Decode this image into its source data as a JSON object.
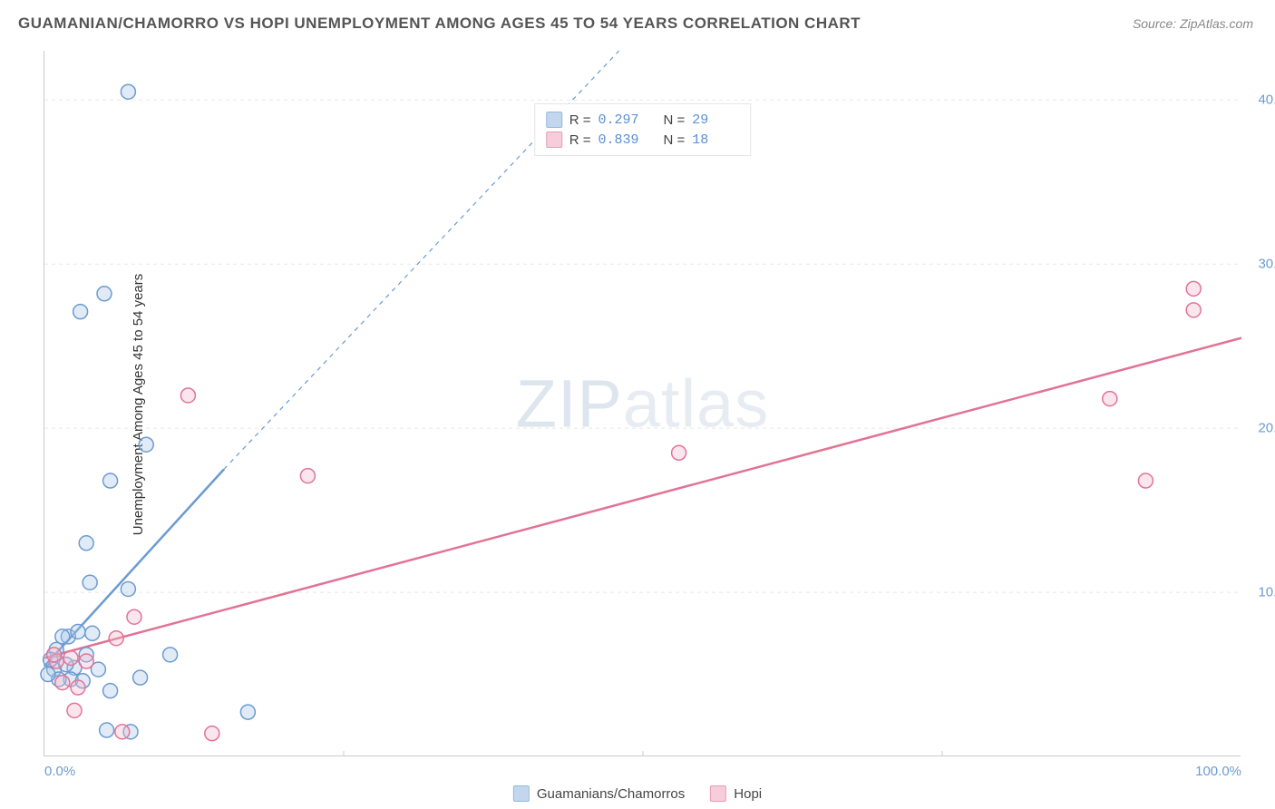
{
  "title": "GUAMANIAN/CHAMORRO VS HOPI UNEMPLOYMENT AMONG AGES 45 TO 54 YEARS CORRELATION CHART",
  "source": "Source: ZipAtlas.com",
  "y_axis_label": "Unemployment Among Ages 45 to 54 years",
  "watermark_bold": "ZIP",
  "watermark_light": "atlas",
  "chart": {
    "type": "scatter",
    "xlim": [
      0,
      100
    ],
    "ylim": [
      0,
      43
    ],
    "x_ticks": [
      {
        "value": 0,
        "label": "0.0%",
        "align": "left"
      },
      {
        "value": 100,
        "label": "100.0%",
        "align": "right"
      }
    ],
    "y_ticks": [
      {
        "value": 10,
        "label": "10.0%"
      },
      {
        "value": 20,
        "label": "20.0%"
      },
      {
        "value": 30,
        "label": "30.0%"
      },
      {
        "value": 40,
        "label": "40.0%"
      }
    ],
    "gridlines_y": [
      10,
      20,
      30,
      40
    ],
    "x_minor_ticks": [
      25,
      50,
      75
    ],
    "background_color": "#ffffff",
    "grid_color": "#e8e8e8",
    "axis_color": "#cccccc",
    "marker_radius": 8,
    "marker_stroke_width": 1.5,
    "marker_fill_opacity": 0.35,
    "series": [
      {
        "name": "Guamanians/Chamorros",
        "color": "#6b9bd1",
        "fill": "#a9c7e8",
        "r": 0.297,
        "n": 29,
        "trend_line": {
          "x1": 0,
          "y1": 5.5,
          "x2": 15,
          "y2": 17.5,
          "width": 2.5,
          "dash": "none"
        },
        "trend_dashed": {
          "x1": 15,
          "y1": 17.5,
          "x2": 48,
          "y2": 43,
          "width": 1.2,
          "dash": "5,5"
        },
        "points": [
          {
            "x": 7,
            "y": 40.5
          },
          {
            "x": 5,
            "y": 28.2
          },
          {
            "x": 3,
            "y": 27.1
          },
          {
            "x": 8.5,
            "y": 19.0
          },
          {
            "x": 5.5,
            "y": 16.8
          },
          {
            "x": 3.5,
            "y": 13.0
          },
          {
            "x": 3.8,
            "y": 10.6
          },
          {
            "x": 7,
            "y": 10.2
          },
          {
            "x": 10.5,
            "y": 6.2
          },
          {
            "x": 4,
            "y": 7.5
          },
          {
            "x": 2,
            "y": 7.3
          },
          {
            "x": 1,
            "y": 6.5
          },
          {
            "x": 2.5,
            "y": 5.4
          },
          {
            "x": 4.5,
            "y": 5.3
          },
          {
            "x": 0.8,
            "y": 5.3
          },
          {
            "x": 2.2,
            "y": 4.7
          },
          {
            "x": 1.2,
            "y": 4.7
          },
          {
            "x": 3.2,
            "y": 4.6
          },
          {
            "x": 8,
            "y": 4.8
          },
          {
            "x": 0.5,
            "y": 5.9
          },
          {
            "x": 1.8,
            "y": 5.6
          },
          {
            "x": 17,
            "y": 2.7
          },
          {
            "x": 5.2,
            "y": 1.6
          },
          {
            "x": 7.2,
            "y": 1.5
          },
          {
            "x": 3.5,
            "y": 6.2
          },
          {
            "x": 1.5,
            "y": 7.3
          },
          {
            "x": 0.3,
            "y": 5.0
          },
          {
            "x": 2.8,
            "y": 7.6
          },
          {
            "x": 5.5,
            "y": 4.0
          }
        ]
      },
      {
        "name": "Hopi",
        "color": "#e27396",
        "fill": "#f4b8cc",
        "r": 0.839,
        "n": 18,
        "trend_line": {
          "x1": 0,
          "y1": 6.0,
          "x2": 100,
          "y2": 25.5,
          "width": 2.5,
          "dash": "none"
        },
        "points": [
          {
            "x": 96,
            "y": 28.5
          },
          {
            "x": 96,
            "y": 27.2
          },
          {
            "x": 89,
            "y": 21.8
          },
          {
            "x": 92,
            "y": 16.8
          },
          {
            "x": 53,
            "y": 18.5
          },
          {
            "x": 22,
            "y": 17.1
          },
          {
            "x": 12,
            "y": 22.0
          },
          {
            "x": 7.5,
            "y": 8.5
          },
          {
            "x": 6,
            "y": 7.2
          },
          {
            "x": 2.2,
            "y": 6.0
          },
          {
            "x": 1.0,
            "y": 5.8
          },
          {
            "x": 2.8,
            "y": 4.2
          },
          {
            "x": 1.5,
            "y": 4.5
          },
          {
            "x": 2.5,
            "y": 2.8
          },
          {
            "x": 6.5,
            "y": 1.5
          },
          {
            "x": 14,
            "y": 1.4
          },
          {
            "x": 0.8,
            "y": 6.2
          },
          {
            "x": 3.5,
            "y": 5.8
          }
        ]
      }
    ]
  },
  "legend_top": {
    "r_label": "R =",
    "n_label": "N ="
  },
  "legend_bottom_labels": [
    "Guamanians/Chamorros",
    "Hopi"
  ]
}
